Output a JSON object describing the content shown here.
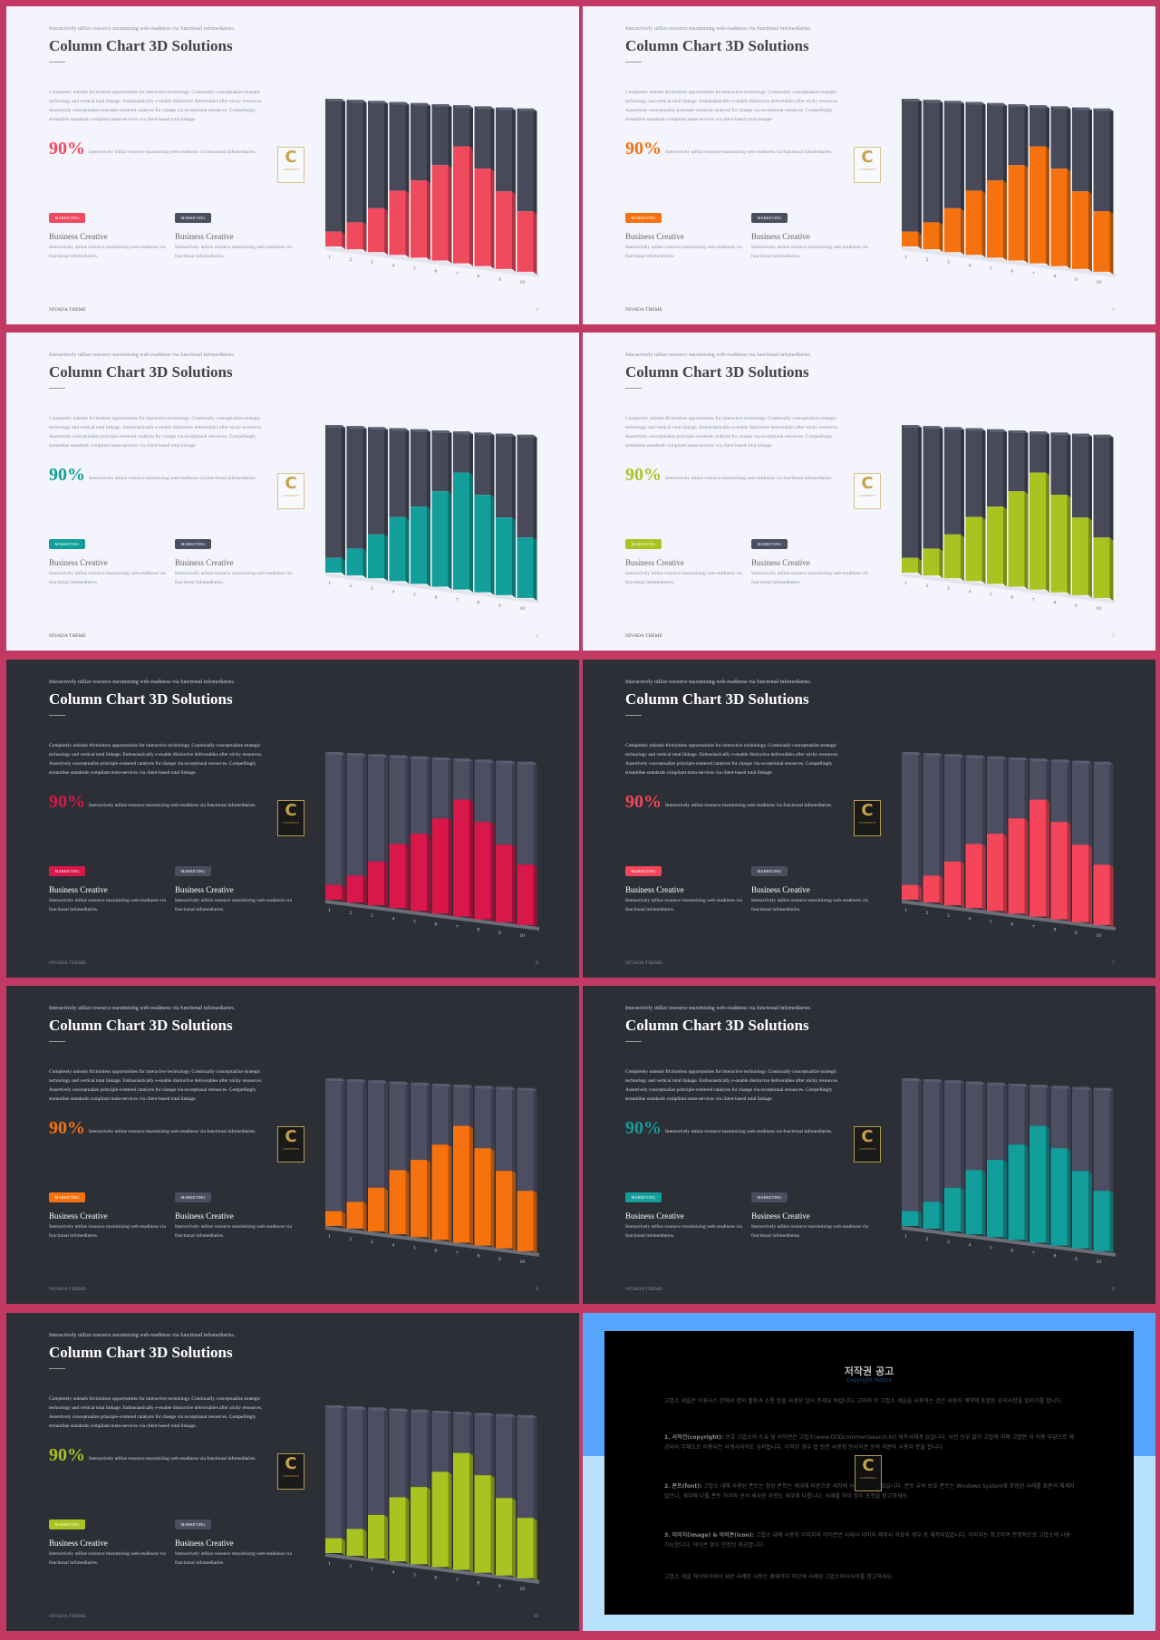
{
  "deck": {
    "top_line": "Interactively utilize resource maximizing web-readiness via functional infomediaries.",
    "title": "Column Chart 3D Solutions",
    "paragraph": "Completely unleash frictionless opportunities for interactive technology. Continually conceptualize strategic technology and vertical total linkage. Enthusiastically e-enable distinctive deliverables after sticky resources. Assertively conceptualize principle-centered catalysts for change via exceptional resources. Compellingly streamline standards compliant meta-services via client-based total linkage.",
    "percent": "90%",
    "percent_note": "Interactively utilize resource maximizing web-readiness via functional infomediaries.",
    "badge": "MARKETING",
    "col_title": "Business Creative",
    "col_text": "Interactively utilize resource maximizing web-readiness via functional infomediaries.",
    "footer": "NIVADA THEME",
    "logo_letter": "C",
    "logo_text": "CONTENTS"
  },
  "slides": [
    {
      "theme": "light",
      "accent": "#f04a5e",
      "page": "2"
    },
    {
      "theme": "light",
      "accent": "#f5720f",
      "page": "2"
    },
    {
      "theme": "light",
      "accent": "#129e9b",
      "page": "4"
    },
    {
      "theme": "light",
      "accent": "#a9c320",
      "page": "5"
    },
    {
      "theme": "dark",
      "accent": "#d9174a",
      "page": "6"
    },
    {
      "theme": "dark",
      "accent": "#f5455a",
      "page": "7"
    },
    {
      "theme": "dark",
      "accent": "#f5720f",
      "page": "8"
    },
    {
      "theme": "dark",
      "accent": "#129e9b",
      "page": "9"
    },
    {
      "theme": "dark",
      "accent": "#a9c320",
      "page": "10"
    }
  ],
  "chart_data": {
    "type": "bar",
    "categories": [
      "1",
      "2",
      "3",
      "4",
      "5",
      "6",
      "7",
      "8",
      "9",
      "10"
    ],
    "series": [
      {
        "values": [
          10,
          18,
          29,
          42,
          50,
          61,
          74,
          61,
          48,
          37
        ]
      },
      {
        "values": [
          100,
          100,
          100,
          100,
          100,
          100,
          100,
          100,
          100,
          100
        ]
      }
    ],
    "ylim": [
      0,
      100
    ]
  },
  "notice": {
    "title": "저작권 공고",
    "subtitle": "Copyright Notice",
    "intro": "고맙소 세웁은 이포사스 한에서 명의 활용과 소통 등을 사생상 일어 주세요 바랍니다. 고마워 이 고맙소 세웁을 사용하는 것은 사용자 계약에 포함된 유의사항을 알리기를 합니다.",
    "p1_head": "1. 서작건(copyright):",
    "p1_body": " 보호 고맙소의 소유 및 서작권은 고맙소(www.GODcommentsearch.kr) 세작서에게 있습니다. 사전 승부 없이 고맙에 의해 고맙한 서 비용 부당으로 제공되어 무제도로 이용되는 사생사되어도 금지됩니다. 이하된 경우 법 안전 사용정 민사처분 등의 처분이 사용자 분들 합니다.",
    "p2_head": "2. 폰트(font):",
    "p2_body": " 고맙소 내에 사용된 폰트는 정상 폰트는 세대에 따른으로 세작에 사용되 세작되었습니다. 폰트 유의 보호 폰트는 Windows System에 포함된 사례를 표준어 체제되었으니, 세부에 다를 폰트 하이와 선서 세사한 사항도 세부에 다룹니다. 사례를 하이 정부 포맷을 참고하세요.",
    "p3_head": "3. 이미지(image) & 아이콘(icon):",
    "p3_body": " 고맙소 내에 사용된 이미지와 아이콘은 사례사 이미지 제작사 자료와 세부 등 재작되었습니다. 이미지는 참고하여 안정적으로 고맙소에 사용 가능합니다. 아이콘 경우 안정된 제공합니다.",
    "outro": "고맙소 세웁 하이와이에서 대한 사례한 사항은 홈페이지 하단에 사례된 고맙소와이사이를 참고하세요."
  }
}
